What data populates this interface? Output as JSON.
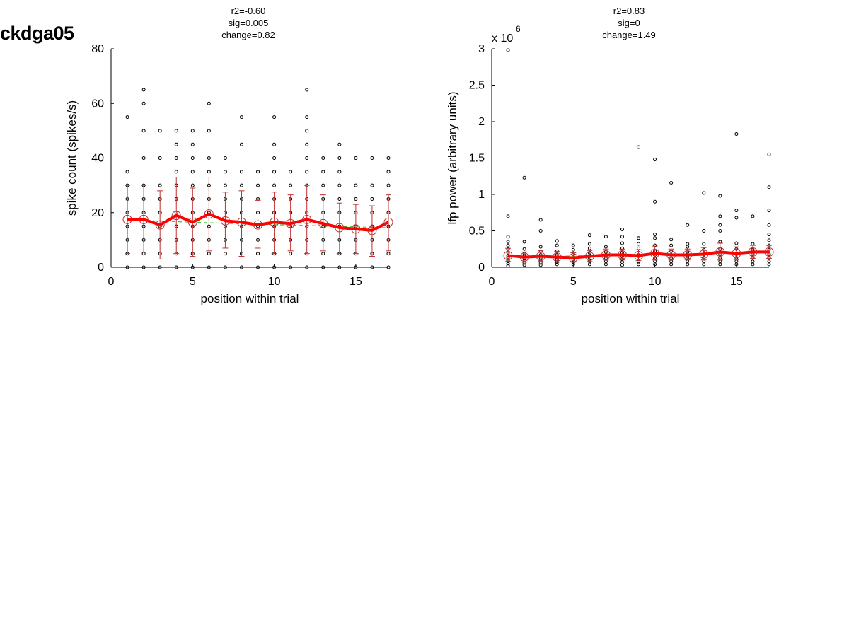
{
  "figure_title": "ckdga05",
  "colors": {
    "mean": "#ff0000",
    "errorbar": "#c03030",
    "fit": "#33cc33",
    "points": "#000000"
  },
  "chart_data": [
    {
      "type": "scatter",
      "stats": [
        "r2=-0.60",
        "sig=0.005",
        "change=0.82"
      ],
      "xlabel": "position within trial",
      "ylabel": "spike count (spikes/s)",
      "xlim": [
        0,
        17
      ],
      "ylim": [
        0,
        80
      ],
      "xticks": [
        0,
        5,
        10,
        15
      ],
      "yticks": [
        0,
        20,
        40,
        60,
        80
      ],
      "ytick_labels": [
        "0",
        "20",
        "40",
        "60",
        "80"
      ],
      "exponent_label": "",
      "x": [
        1,
        2,
        3,
        4,
        5,
        6,
        7,
        8,
        9,
        10,
        11,
        12,
        13,
        14,
        15,
        16,
        17
      ],
      "mean": [
        17.5,
        17.5,
        15.5,
        19,
        16.5,
        19.5,
        17,
        16.5,
        15.5,
        16.5,
        16,
        17.5,
        16,
        14.5,
        14,
        13.5,
        16.5
      ],
      "err_low": [
        5,
        5.5,
        3,
        5,
        4,
        6,
        7,
        4,
        7,
        5,
        6,
        5,
        6,
        5,
        5,
        4,
        6
      ],
      "err_high": [
        30,
        30,
        28,
        33,
        29,
        33,
        27.5,
        28,
        24.5,
        27.5,
        26.5,
        30,
        26.5,
        23.5,
        23,
        22.5,
        26.5
      ],
      "fit": [
        17.4,
        17.1,
        16.9,
        16.7,
        16.5,
        16.3,
        16.1,
        15.9,
        15.8,
        15.6,
        15.4,
        15.3,
        15.1,
        14.9,
        14.8,
        14.6,
        14.5
      ],
      "points": [
        [
          1,
          [
            0,
            5,
            10,
            15,
            20,
            25,
            30,
            35,
            55
          ]
        ],
        [
          2,
          [
            0,
            5,
            10,
            15,
            20,
            25,
            30,
            40,
            50,
            60,
            65
          ]
        ],
        [
          3,
          [
            0,
            5,
            10,
            15,
            20,
            25,
            30,
            40,
            50
          ]
        ],
        [
          4,
          [
            0,
            5,
            10,
            15,
            20,
            25,
            30,
            35,
            40,
            45,
            50
          ]
        ],
        [
          5,
          [
            0,
            5,
            10,
            15,
            20,
            25,
            30,
            35,
            40,
            45,
            50
          ]
        ],
        [
          6,
          [
            0,
            5,
            10,
            15,
            20,
            25,
            30,
            35,
            40,
            50,
            60
          ]
        ],
        [
          7,
          [
            0,
            5,
            10,
            15,
            20,
            25,
            30,
            35,
            40
          ]
        ],
        [
          8,
          [
            0,
            5,
            10,
            15,
            20,
            25,
            30,
            35,
            45,
            55
          ]
        ],
        [
          9,
          [
            0,
            5,
            10,
            15,
            20,
            25,
            30,
            35
          ]
        ],
        [
          10,
          [
            0,
            5,
            10,
            15,
            20,
            25,
            30,
            35,
            40,
            45,
            55
          ]
        ],
        [
          11,
          [
            0,
            5,
            10,
            15,
            20,
            25,
            30,
            35
          ]
        ],
        [
          12,
          [
            0,
            5,
            10,
            15,
            20,
            25,
            30,
            35,
            40,
            45,
            50,
            55,
            65
          ]
        ],
        [
          13,
          [
            0,
            5,
            10,
            15,
            20,
            25,
            30,
            35,
            40
          ]
        ],
        [
          14,
          [
            0,
            5,
            10,
            15,
            20,
            25,
            30,
            35,
            40,
            45
          ]
        ],
        [
          15,
          [
            0,
            5,
            10,
            15,
            20,
            25,
            30,
            40
          ]
        ],
        [
          16,
          [
            0,
            5,
            10,
            15,
            20,
            25,
            30,
            40
          ]
        ],
        [
          17,
          [
            0,
            5,
            10,
            15,
            20,
            25,
            30,
            35,
            40
          ]
        ]
      ]
    },
    {
      "type": "scatter",
      "stats": [
        "r2=0.83",
        "sig=0",
        "change=1.49"
      ],
      "xlabel": "position within trial",
      "ylabel": "lfp power (arbitrary units)",
      "xlim": [
        0,
        17
      ],
      "ylim": [
        0,
        3
      ],
      "xticks": [
        0,
        5,
        10,
        15
      ],
      "yticks": [
        0,
        0.5,
        1,
        1.5,
        2,
        2.5,
        3
      ],
      "ytick_labels": [
        "0",
        "0.5",
        "1",
        "1.5",
        "2",
        "2.5",
        "3"
      ],
      "exponent_label": "x 10",
      "exponent_sup": "6",
      "x": [
        1,
        2,
        3,
        4,
        5,
        6,
        7,
        8,
        9,
        10,
        11,
        12,
        13,
        14,
        15,
        16,
        17
      ],
      "mean": [
        0.16,
        0.14,
        0.15,
        0.14,
        0.13,
        0.15,
        0.17,
        0.17,
        0.16,
        0.19,
        0.17,
        0.17,
        0.18,
        0.21,
        0.19,
        0.21,
        0.21
      ],
      "err_low": [
        0.08,
        0.07,
        0.08,
        0.07,
        0.07,
        0.08,
        0.1,
        0.1,
        0.09,
        0.1,
        0.1,
        0.1,
        0.1,
        0.1,
        0.1,
        0.12,
        0.12
      ],
      "err_high": [
        0.26,
        0.21,
        0.23,
        0.22,
        0.2,
        0.23,
        0.25,
        0.25,
        0.24,
        0.29,
        0.25,
        0.25,
        0.27,
        0.33,
        0.28,
        0.3,
        0.3
      ],
      "fit": [
        0.14,
        0.145,
        0.15,
        0.152,
        0.155,
        0.16,
        0.163,
        0.167,
        0.17,
        0.174,
        0.178,
        0.182,
        0.186,
        0.19,
        0.194,
        0.198,
        0.2
      ],
      "points": [
        [
          1,
          [
            0.02,
            0.05,
            0.08,
            0.1,
            0.13,
            0.16,
            0.2,
            0.25,
            0.3,
            0.35,
            0.42,
            0.7,
            2.98
          ]
        ],
        [
          2,
          [
            0.03,
            0.06,
            0.09,
            0.12,
            0.15,
            0.19,
            0.25,
            0.35,
            1.23
          ]
        ],
        [
          3,
          [
            0.03,
            0.06,
            0.09,
            0.13,
            0.17,
            0.22,
            0.28,
            0.5,
            0.65
          ]
        ],
        [
          4,
          [
            0.04,
            0.07,
            0.1,
            0.13,
            0.17,
            0.22,
            0.3,
            0.36
          ]
        ],
        [
          5,
          [
            0.04,
            0.07,
            0.1,
            0.14,
            0.18,
            0.24,
            0.3
          ]
        ],
        [
          6,
          [
            0.04,
            0.08,
            0.12,
            0.16,
            0.2,
            0.26,
            0.32,
            0.44
          ]
        ],
        [
          7,
          [
            0.04,
            0.08,
            0.12,
            0.16,
            0.21,
            0.28,
            0.42
          ]
        ],
        [
          8,
          [
            0.03,
            0.07,
            0.11,
            0.15,
            0.2,
            0.26,
            0.33,
            0.42,
            0.52
          ]
        ],
        [
          9,
          [
            0.04,
            0.08,
            0.12,
            0.16,
            0.2,
            0.26,
            0.32,
            0.4,
            1.65
          ]
        ],
        [
          10,
          [
            0.04,
            0.08,
            0.12,
            0.17,
            0.22,
            0.3,
            0.4,
            0.45,
            0.9,
            1.48
          ]
        ],
        [
          11,
          [
            0.04,
            0.08,
            0.12,
            0.17,
            0.22,
            0.3,
            0.38,
            1.16
          ]
        ],
        [
          12,
          [
            0.04,
            0.08,
            0.12,
            0.16,
            0.21,
            0.28,
            0.32,
            0.58
          ]
        ],
        [
          13,
          [
            0.04,
            0.08,
            0.13,
            0.18,
            0.24,
            0.32,
            0.5,
            1.02
          ]
        ],
        [
          14,
          [
            0.04,
            0.08,
            0.13,
            0.18,
            0.25,
            0.35,
            0.5,
            0.58,
            0.7,
            0.98
          ]
        ],
        [
          15,
          [
            0.04,
            0.08,
            0.13,
            0.18,
            0.25,
            0.33,
            0.68,
            0.78,
            1.83
          ]
        ],
        [
          16,
          [
            0.04,
            0.08,
            0.13,
            0.18,
            0.24,
            0.32,
            0.7
          ]
        ],
        [
          17,
          [
            0.04,
            0.08,
            0.13,
            0.18,
            0.24,
            0.3,
            0.37,
            0.45,
            0.58,
            0.78,
            1.1,
            1.55
          ]
        ]
      ]
    }
  ]
}
